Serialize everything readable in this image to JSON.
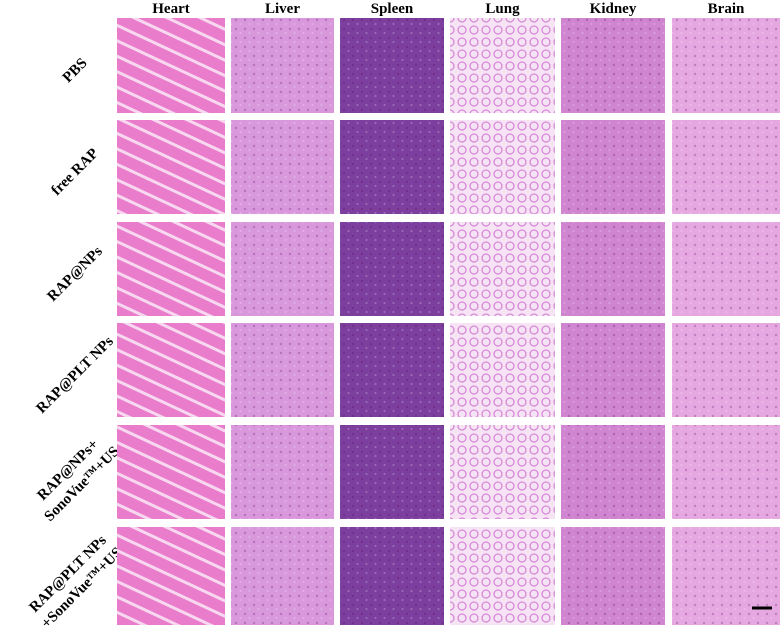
{
  "columns": [
    "Heart",
    "Liver",
    "Spleen",
    "Lung",
    "Kidney",
    "Brain"
  ],
  "rows": [
    {
      "label": [
        "PBS"
      ]
    },
    {
      "label": [
        "free RAP"
      ]
    },
    {
      "label": [
        "RAP@NPs"
      ]
    },
    {
      "label": [
        "RAP@PLT NPs"
      ]
    },
    {
      "label": [
        "RAP@NPs+",
        "SonoVue™+US"
      ]
    },
    {
      "label": [
        "RAP@PLT NPs",
        "+SonoVue™+US"
      ]
    }
  ]
}
